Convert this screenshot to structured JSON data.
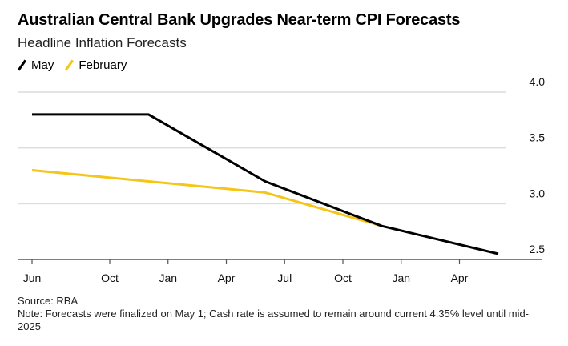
{
  "header": {
    "title": "Australian Central Bank Upgrades Near-term CPI Forecasts",
    "subtitle": "Headline Inflation Forecasts"
  },
  "legend": [
    {
      "label": "May",
      "color": "#000000"
    },
    {
      "label": "February",
      "color": "#f5c518"
    }
  ],
  "footer": {
    "source": "Source: RBA",
    "note": "Note: Forecasts were finalized on May 1; Cash rate is assumed to remain around current 4.35% level until mid-2025"
  },
  "chart_data": {
    "type": "line",
    "title": "Australian Central Bank Upgrades Near-term CPI Forecasts",
    "subtitle": "Headline Inflation Forecasts",
    "xlabel": "",
    "ylabel": "",
    "x_range": [
      "2023-06",
      "2025-08"
    ],
    "x_ticks": [
      {
        "date": "2023-06",
        "label": "Jun"
      },
      {
        "date": "2023-10",
        "label": "Oct"
      },
      {
        "date": "2024-01",
        "label": "Jan"
      },
      {
        "date": "2024-04",
        "label": "Apr"
      },
      {
        "date": "2024-07",
        "label": "Jul"
      },
      {
        "date": "2024-10",
        "label": "Oct"
      },
      {
        "date": "2025-01",
        "label": "Jan"
      },
      {
        "date": "2025-04",
        "label": "Apr"
      }
    ],
    "ylim": [
      2.5,
      4.0
    ],
    "y_ticks": [
      "2.5",
      "3.0",
      "3.5",
      "4.0"
    ],
    "y_axis_side": "right",
    "grid": true,
    "legend_position": "top-left",
    "series": [
      {
        "name": "May",
        "color": "#000000",
        "points": [
          {
            "x": "2023-06",
            "y": 3.8
          },
          {
            "x": "2023-12",
            "y": 3.8
          },
          {
            "x": "2024-06",
            "y": 3.2
          },
          {
            "x": "2024-12",
            "y": 2.8
          },
          {
            "x": "2025-06",
            "y": 2.55
          }
        ]
      },
      {
        "name": "February",
        "color": "#f5c518",
        "points": [
          {
            "x": "2023-06",
            "y": 3.3
          },
          {
            "x": "2024-06",
            "y": 3.1
          },
          {
            "x": "2024-12",
            "y": 2.8
          }
        ]
      }
    ],
    "source": "Source: RBA",
    "note": "Note: Forecasts were finalized on May 1; Cash rate is assumed to remain around current 4.35% level until mid-2025"
  }
}
